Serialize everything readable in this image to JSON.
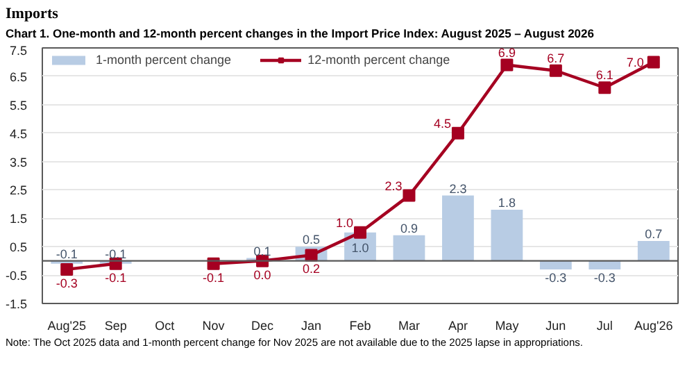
{
  "chart_data": {
    "type": "bar",
    "title": "Imports",
    "subtitle": "Chart 1. One-month and 12-month percent changes in the Import Price Index: August 2025 – August 2026",
    "categories": [
      "Aug'25",
      "Sep",
      "Oct",
      "Nov",
      "Dec",
      "Jan",
      "Feb",
      "Mar",
      "Apr",
      "May",
      "Jun",
      "Jul",
      "Aug'26"
    ],
    "series": [
      {
        "name": "1-month percent change",
        "type": "bar",
        "color": "#b8cce4",
        "values": [
          -0.1,
          -0.1,
          null,
          null,
          0.1,
          0.5,
          1.0,
          0.9,
          2.3,
          1.8,
          -0.3,
          -0.3,
          0.7
        ],
        "value_labels": [
          "-0.1",
          "-0.1",
          null,
          null,
          "0.1",
          "0.5",
          "1.0",
          "0.9",
          "2.3",
          "1.8",
          "-0.3",
          "-0.3",
          "0.7"
        ]
      },
      {
        "name": "12-month percent change",
        "type": "line",
        "color": "#a50021",
        "marker": "square",
        "values": [
          -0.3,
          -0.1,
          null,
          -0.1,
          0.0,
          0.2,
          1.0,
          2.3,
          4.5,
          6.9,
          6.7,
          6.1,
          7.0
        ],
        "value_labels": [
          "-0.3",
          "-0.1",
          null,
          "-0.1",
          "0.0",
          "0.2",
          "1.0",
          "2.3",
          "4.5",
          "6.9",
          "6.7",
          "6.1",
          "7.0"
        ]
      }
    ],
    "ylim": [
      -1.5,
      7.5
    ],
    "yticks": [
      -1.5,
      -0.5,
      0.5,
      1.5,
      2.5,
      3.5,
      4.5,
      5.5,
      6.5,
      7.5
    ],
    "ref_lines": [
      {
        "axis": "y",
        "value": 0,
        "color": "#595959"
      }
    ],
    "grid": "y",
    "legend": "top left",
    "annotations": [
      "Note: The Oct 2025 data and 1-month percent change for Nov 2025 are not available due to the 2025 lapse in appropriations."
    ]
  }
}
